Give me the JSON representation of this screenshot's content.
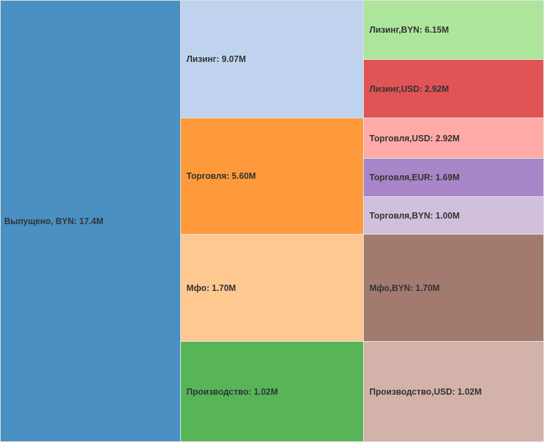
{
  "chart_data": {
    "type": "treemap",
    "title": "",
    "nodes": [
      {
        "id": "root",
        "label": "Выпущено, BYN",
        "value": 17.4,
        "display": "17.4M",
        "color": "#4a90c2",
        "col": 0,
        "row": [
          0,
          635
        ]
      },
      {
        "id": "l",
        "label": "Лизинг",
        "value": 9.07,
        "display": "9.07M",
        "color": "#bfd3ee",
        "parent": "root"
      },
      {
        "id": "t",
        "label": "Торговля",
        "value": 5.6,
        "display": "5.60M",
        "color": "#ff9a3c",
        "parent": "root"
      },
      {
        "id": "m",
        "label": "Мфо",
        "value": 1.7,
        "display": "1.70M",
        "color": "#ffc891",
        "parent": "root"
      },
      {
        "id": "p",
        "label": "Производство",
        "value": 1.02,
        "display": "1.02M",
        "color": "#57b558",
        "parent": "root"
      },
      {
        "id": "lb",
        "label": "Лизинг,BYN",
        "value": 6.15,
        "display": "6.15M",
        "color": "#ade59c",
        "parent": "l"
      },
      {
        "id": "lu",
        "label": "Лизинг,USD",
        "value": 2.92,
        "display": "2.92M",
        "color": "#e05455",
        "parent": "l"
      },
      {
        "id": "tu",
        "label": "Торговля,USD",
        "value": 2.92,
        "display": "2.92M",
        "color": "#ffaaa7",
        "parent": "t"
      },
      {
        "id": "te",
        "label": "Торговля,EUR",
        "value": 1.69,
        "display": "1.69M",
        "color": "#a886c8",
        "parent": "t"
      },
      {
        "id": "tb",
        "label": "Торговля,BYN",
        "value": 1.0,
        "display": "1.00M",
        "color": "#d1c0dd",
        "parent": "t"
      },
      {
        "id": "mb",
        "label": "Мфо,BYN",
        "value": 1.7,
        "display": "1.70M",
        "color": "#a27a6e",
        "parent": "m"
      },
      {
        "id": "pu",
        "label": "Производство,USD",
        "value": 1.02,
        "display": "1.02M",
        "color": "#d3b2aa",
        "parent": "p"
      }
    ]
  }
}
